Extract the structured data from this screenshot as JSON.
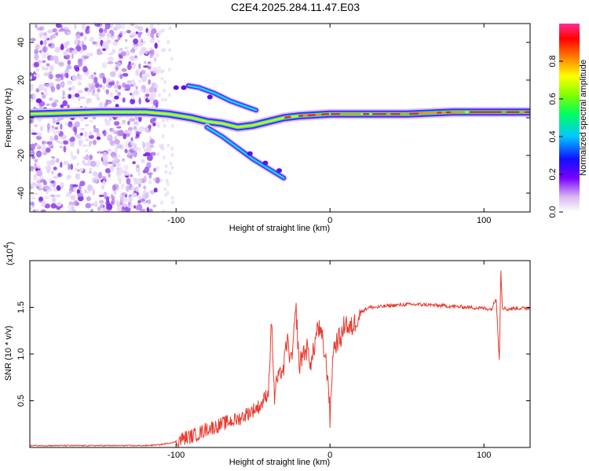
{
  "title": "C2E4.2025.284.11.47.E03",
  "chart_data": [
    {
      "type": "heatmap",
      "name": "spectrogram",
      "xlabel": "Height of straight line (km)",
      "ylabel": "Frequency (Hz)",
      "xlim": [
        -195,
        130
      ],
      "ylim": [
        -50,
        50
      ],
      "xticks": [
        -100,
        0,
        100
      ],
      "yticks": [
        40,
        20,
        0,
        -20,
        -40
      ],
      "colorbar": {
        "label": "Normalized spectral amplitude",
        "range": [
          0,
          1
        ],
        "ticks": [
          "0.0",
          "0.2",
          "0.4",
          "0.6",
          "0.8"
        ]
      },
      "ridges": [
        {
          "name": "main-band",
          "points": [
            [
              -195,
              2
            ],
            [
              -150,
              3
            ],
            [
              -120,
              3
            ],
            [
              -105,
              2
            ],
            [
              -90,
              0
            ],
            [
              -80,
              -2
            ],
            [
              -70,
              -3
            ],
            [
              -60,
              -5
            ],
            [
              -50,
              -4
            ],
            [
              -40,
              -2
            ],
            [
              -30,
              0
            ],
            [
              -20,
              1
            ],
            [
              0,
              2
            ],
            [
              50,
              2
            ],
            [
              80,
              3
            ],
            [
              100,
              3
            ],
            [
              130,
              3
            ]
          ]
        },
        {
          "name": "upper-branch",
          "points": [
            [
              -92,
              17
            ],
            [
              -85,
              16
            ],
            [
              -75,
              13
            ],
            [
              -65,
              9
            ],
            [
              -55,
              6
            ],
            [
              -48,
              4
            ]
          ]
        },
        {
          "name": "lower-branch",
          "points": [
            [
              -80,
              -5
            ],
            [
              -70,
              -10
            ],
            [
              -60,
              -16
            ],
            [
              -50,
              -22
            ],
            [
              -40,
              -27
            ],
            [
              -30,
              -32
            ]
          ]
        }
      ]
    },
    {
      "type": "line",
      "name": "snr",
      "xlabel": "Height of straight line (km)",
      "ylabel": "SNR (10 * v/v)",
      "yscale_label": "(x10",
      "yscale_exp": "4",
      "xlim": [
        -195,
        130
      ],
      "ylim": [
        0,
        2
      ],
      "xticks": [
        -100,
        0,
        100
      ],
      "yticks": [
        "0.5",
        "1.0",
        "1.5"
      ],
      "color": "#e83a2e",
      "series": [
        {
          "name": "SNR",
          "x": [
            -195,
            -180,
            -160,
            -140,
            -120,
            -110,
            -100,
            -95,
            -90,
            -85,
            -80,
            -75,
            -70,
            -65,
            -60,
            -55,
            -50,
            -45,
            -40,
            -38,
            -36,
            -35,
            -32,
            -30,
            -28,
            -25,
            -22,
            -20,
            -18,
            -15,
            -12,
            -10,
            -8,
            -5,
            -3,
            -1,
            0,
            2,
            5,
            8,
            10,
            12,
            15,
            18,
            20,
            25,
            30,
            40,
            50,
            60,
            70,
            80,
            90,
            100,
            105,
            108,
            110,
            111,
            112,
            115,
            120,
            130
          ],
          "y": [
            0.02,
            0.02,
            0.02,
            0.02,
            0.02,
            0.03,
            0.06,
            0.1,
            0.12,
            0.15,
            0.2,
            0.22,
            0.25,
            0.28,
            0.3,
            0.35,
            0.4,
            0.45,
            0.6,
            1.37,
            0.5,
            0.7,
            0.8,
            0.85,
            1.15,
            0.9,
            1.48,
            0.85,
            1.0,
            1.05,
            0.9,
            1.1,
            1.3,
            1.15,
            0.95,
            0.7,
            0.3,
            1.05,
            1.15,
            1.2,
            1.38,
            1.25,
            1.3,
            1.4,
            1.45,
            1.5,
            1.5,
            1.52,
            1.53,
            1.53,
            1.52,
            1.51,
            1.5,
            1.49,
            1.48,
            1.6,
            0.93,
            1.9,
            1.5,
            1.48,
            1.49,
            1.49
          ]
        }
      ]
    }
  ]
}
